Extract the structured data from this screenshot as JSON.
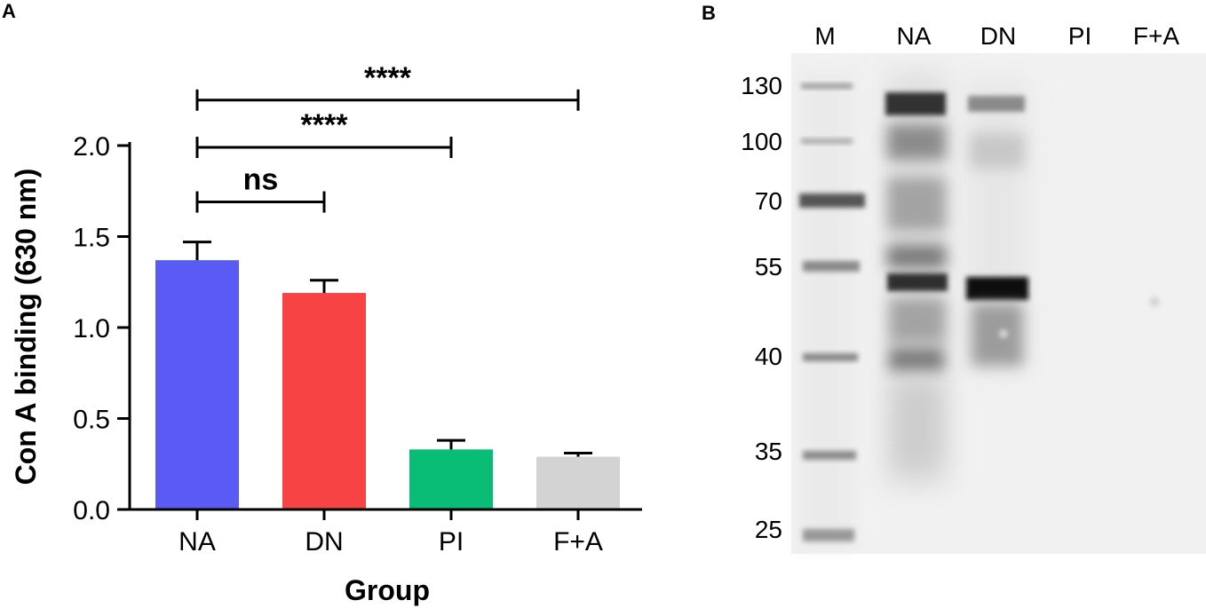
{
  "panel_a": {
    "letter": "A",
    "chart_data": {
      "type": "bar",
      "xlabel": "Group",
      "ylabel": "Con A binding (630 nm)",
      "ylim": [
        0,
        2.0
      ],
      "yticks": [
        "0.0",
        "0.5",
        "1.0",
        "1.5",
        "2.0"
      ],
      "categories": [
        "NA",
        "DN",
        "PI",
        "F+A"
      ],
      "values": [
        1.37,
        1.19,
        0.33,
        0.29
      ],
      "errors": [
        0.1,
        0.07,
        0.05,
        0.02
      ],
      "colors": [
        "#5a5af5",
        "#f74343",
        "#0abd76",
        "#d3d3d3"
      ],
      "comparisons": [
        {
          "from": "NA",
          "to": "DN",
          "label": "ns",
          "y": 1.69
        },
        {
          "from": "NA",
          "to": "PI",
          "label": "****",
          "y": 1.99
        },
        {
          "from": "NA",
          "to": "F+A",
          "label": "****",
          "y": 2.25
        }
      ]
    }
  },
  "panel_b": {
    "letter": "B",
    "lane_labels": [
      "M",
      "NA",
      "DN",
      "PI",
      "F+A"
    ],
    "marker_labels": [
      "130",
      "100",
      "70",
      "55",
      "40",
      "35",
      "25"
    ]
  }
}
